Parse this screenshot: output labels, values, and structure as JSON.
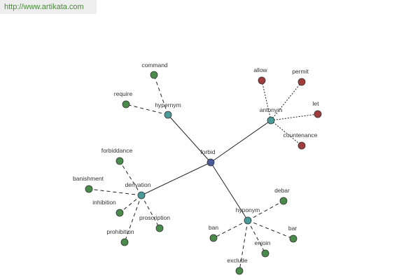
{
  "header": {
    "url": "http://www.artikata.com"
  },
  "nodes": [
    {
      "label": "forbid"
    },
    {
      "label": "hypernym"
    },
    {
      "label": "antonym"
    },
    {
      "label": "derivation"
    },
    {
      "label": "hyponym"
    },
    {
      "label": "command"
    },
    {
      "label": "require"
    },
    {
      "label": "allow"
    },
    {
      "label": "permit"
    },
    {
      "label": "let"
    },
    {
      "label": "countenance"
    },
    {
      "label": "forbiddance"
    },
    {
      "label": "banishment"
    },
    {
      "label": "inhibition"
    },
    {
      "label": "prohibition"
    },
    {
      "label": "proscription"
    },
    {
      "label": "debar"
    },
    {
      "label": "ban"
    },
    {
      "label": "bar"
    },
    {
      "label": "enjoin"
    },
    {
      "label": "exclude"
    }
  ]
}
